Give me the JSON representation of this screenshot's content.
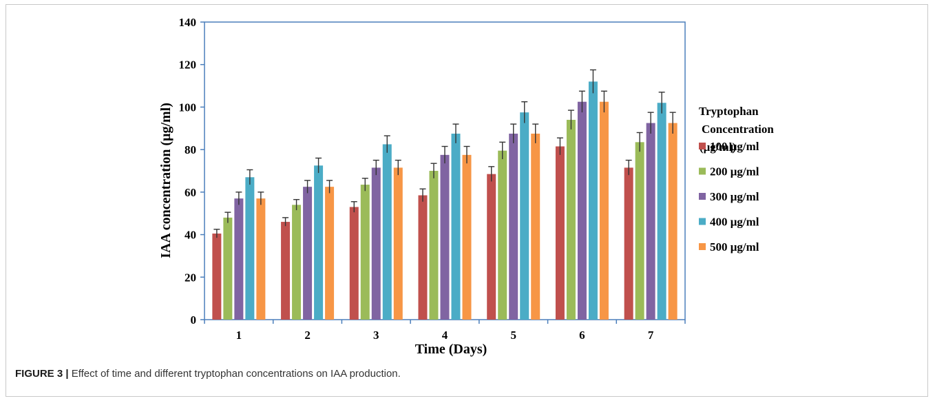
{
  "chart_data": {
    "type": "bar",
    "title": "",
    "xlabel": "Time (Days)",
    "ylabel": "IAA concentration (μg/ml)",
    "ylim": [
      0,
      140
    ],
    "yticks": [
      "0",
      "20",
      "40",
      "60",
      "80",
      "100",
      "120",
      "140"
    ],
    "categories": [
      "1",
      "2",
      "3",
      "4",
      "5",
      "6",
      "7"
    ],
    "legend_title": [
      "Tryptophan",
      "Concentration",
      "(μg/ml)"
    ],
    "legend_position": "right",
    "grid": false,
    "series": [
      {
        "name": "100 μg/ml",
        "color": "#c0504d",
        "values": [
          40.5,
          46,
          53,
          58.5,
          68.5,
          81.5,
          71.5
        ],
        "errors": [
          2,
          2,
          2.5,
          3,
          3.5,
          4,
          3.5
        ]
      },
      {
        "name": "200 μg/ml",
        "color": "#9bbb59",
        "values": [
          48,
          54,
          63.5,
          70,
          79.5,
          94,
          83.5
        ],
        "errors": [
          2.5,
          2.5,
          3,
          3.5,
          4,
          4.5,
          4.5
        ]
      },
      {
        "name": "300 μg/ml",
        "color": "#8064a2",
        "values": [
          57,
          62.5,
          71.5,
          77.5,
          87.5,
          102.5,
          92.5
        ],
        "errors": [
          3,
          3,
          3.5,
          4,
          4.5,
          5,
          5
        ]
      },
      {
        "name": "400 μg/ml",
        "color": "#4bacc6",
        "values": [
          67,
          72.5,
          82.5,
          87.5,
          97.5,
          112,
          102
        ],
        "errors": [
          3.5,
          3.5,
          4,
          4.5,
          5,
          5.5,
          5
        ]
      },
      {
        "name": "500 μg/ml",
        "color": "#f79646",
        "values": [
          57,
          62.5,
          71.5,
          77.5,
          87.5,
          102.5,
          92.5
        ],
        "errors": [
          3,
          3,
          3.5,
          4,
          4.5,
          5,
          5
        ]
      }
    ]
  },
  "caption": {
    "label": "FIGURE 3 |",
    "text": " Effect of time and different tryptophan concentrations on IAA production."
  }
}
